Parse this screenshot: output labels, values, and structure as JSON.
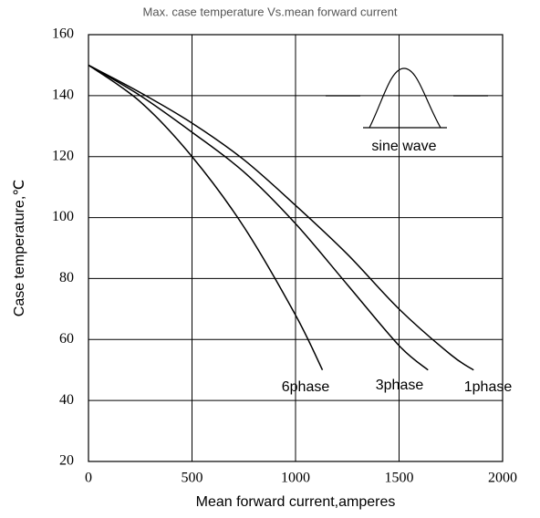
{
  "chart_data": {
    "type": "line",
    "title": "Max. case temperature  Vs.mean forward current",
    "x_label": "Mean forward  current,amperes",
    "y_label": "Case temperature,℃",
    "annotation": "sine wave",
    "xlim": [
      0,
      2000
    ],
    "xticks": [
      0,
      500,
      1000,
      1500,
      2000
    ],
    "ylim": [
      20,
      160
    ],
    "yticks": [
      20,
      40,
      60,
      80,
      100,
      120,
      140,
      160
    ],
    "grid": true,
    "series": [
      {
        "name": "6phase",
        "color": "#000000",
        "x": [
          0,
          250,
          500,
          750,
          1000,
          1130
        ],
        "values": [
          150,
          138,
          120,
          97,
          68,
          50
        ]
      },
      {
        "name": "3phase",
        "color": "#000000",
        "x": [
          0,
          250,
          500,
          750,
          1000,
          1250,
          1500,
          1640
        ],
        "values": [
          150,
          140,
          128,
          115,
          98,
          78,
          58,
          50
        ]
      },
      {
        "name": "1phase",
        "color": "#000000",
        "x": [
          0,
          250,
          500,
          750,
          1000,
          1250,
          1500,
          1750,
          1860
        ],
        "values": [
          150,
          141,
          131,
          119,
          104,
          88,
          70,
          55,
          50
        ]
      }
    ]
  }
}
